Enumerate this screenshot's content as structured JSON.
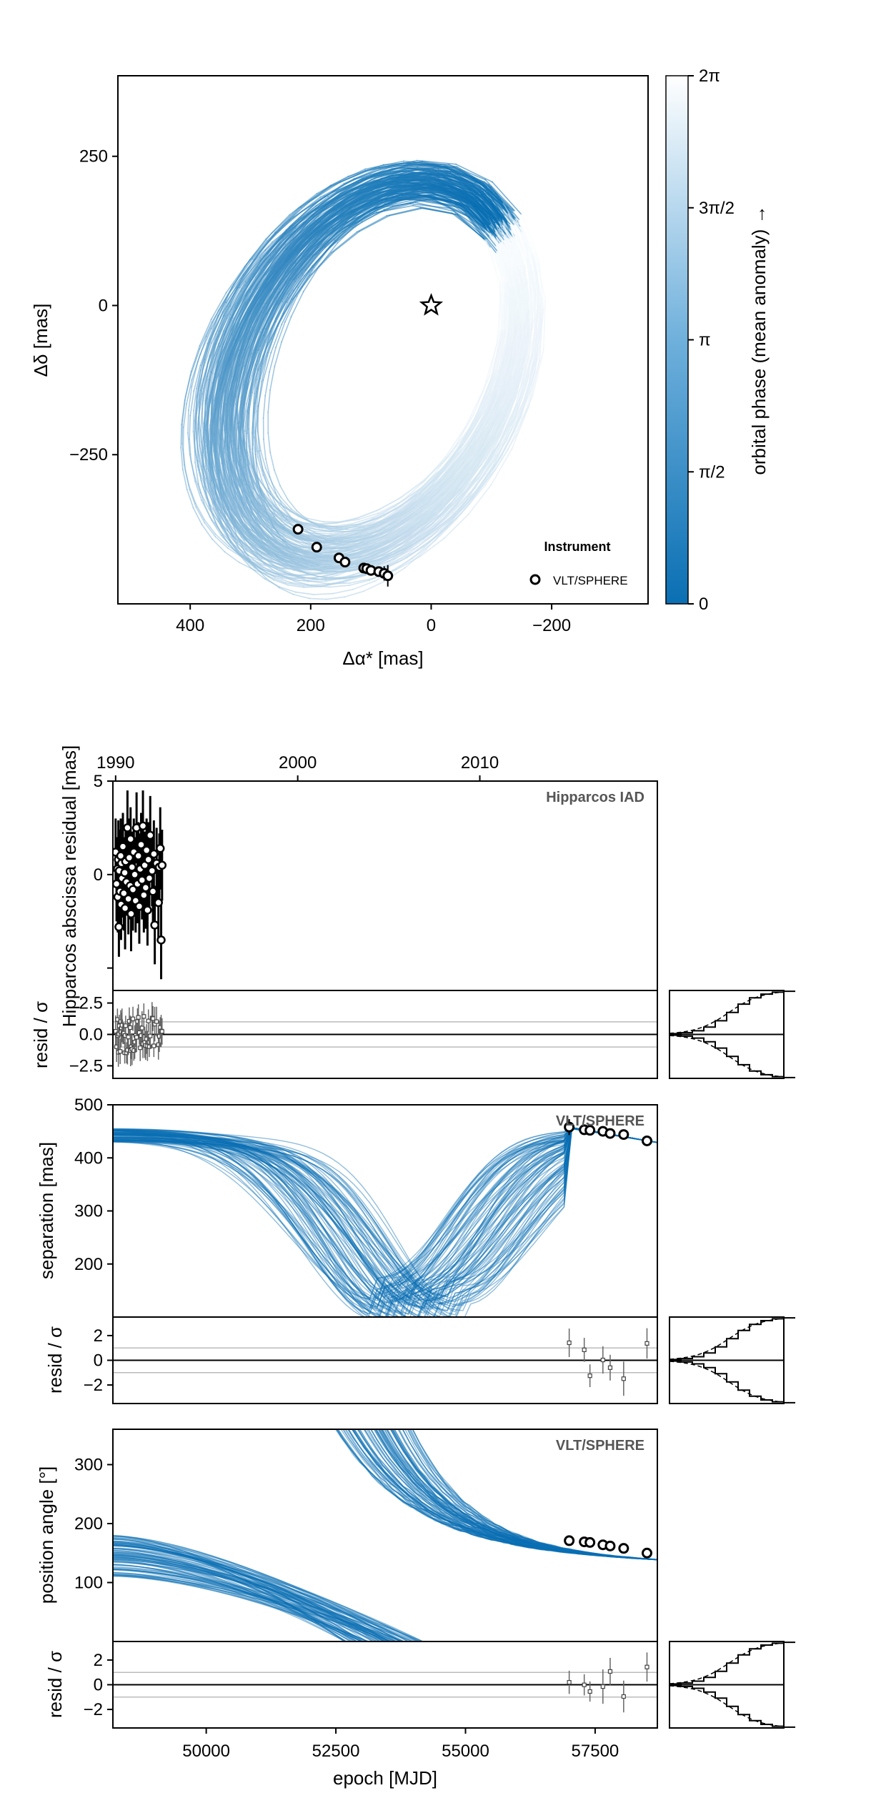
{
  "chart_data": [
    {
      "type": "line",
      "panel": "orbit-sky-plane",
      "xlabel": "Δα* [mas]",
      "ylabel": "Δδ [mas]",
      "xlim": [
        520,
        -360
      ],
      "ylim": [
        -500,
        385
      ],
      "x_axis_reversed": true,
      "xticks": [
        {
          "value": 400,
          "label": "400"
        },
        {
          "value": 200,
          "label": "200"
        },
        {
          "value": 0,
          "label": "0"
        },
        {
          "value": -200,
          "label": "−200"
        }
      ],
      "yticks": [
        {
          "value": 250,
          "label": "250"
        },
        {
          "value": 0,
          "label": "0"
        },
        {
          "value": -250,
          "label": "−250"
        }
      ],
      "grid": false,
      "star_marker": {
        "x": 0,
        "y": 0
      },
      "orbit_model": {
        "semimajor_mas": 340,
        "eccentricity": 0.45,
        "inclination_deg": 45,
        "n_samples": 150
      },
      "legend": {
        "title": "Instrument",
        "placement": "bottom-right",
        "entries": [
          "VLT/SPHERE"
        ]
      },
      "series": [
        {
          "name": "VLT/SPHERE",
          "x": [
            221,
            190,
            153,
            143,
            112,
            107,
            100,
            87,
            78,
            72
          ],
          "y": [
            -375,
            -405,
            -423,
            -430,
            -440,
            -441,
            -444,
            -446,
            -449,
            -453
          ],
          "yerr": [
            6,
            6,
            6,
            6,
            6,
            6,
            6,
            6,
            12,
            18
          ]
        }
      ],
      "colorbar": {
        "label": "orbital phase (mean anomaly) →",
        "ticks": [
          "0",
          "π/2",
          "π",
          "3π/2",
          "2π"
        ],
        "color_low": "#0a6fb3",
        "color_high": "#ffffff"
      }
    },
    {
      "type": "scatter",
      "panel": "hipparcos-iad",
      "title": "Hipparcos IAD",
      "xlabel": "",
      "ylabel": "Hipparcos abscissa residual [mas]",
      "top_axis_ticks": [
        {
          "value": 1990,
          "label": "1990"
        },
        {
          "value": 2000,
          "label": "2000"
        },
        {
          "value": 2010,
          "label": "2010"
        }
      ],
      "xlim_years": [
        1989.85,
        2019.75
      ],
      "ylim": [
        -6.2,
        5
      ],
      "yticks": [
        {
          "value": 5,
          "label": "5"
        },
        {
          "value": 0,
          "label": "0"
        }
      ],
      "series": [
        {
          "name": "Hipparcos IAD",
          "x": [
            1990.0,
            1990.05,
            1990.1,
            1990.12,
            1990.15,
            1990.18,
            1990.2,
            1990.25,
            1990.28,
            1990.3,
            1990.32,
            1990.35,
            1990.4,
            1990.45,
            1990.5,
            1990.52,
            1990.55,
            1990.6,
            1990.65,
            1990.7,
            1990.75,
            1990.8,
            1990.82,
            1990.85,
            1990.9,
            1990.95,
            1991.0,
            1991.05,
            1991.1,
            1991.15,
            1991.2,
            1991.25,
            1991.3,
            1991.35,
            1991.4,
            1991.45,
            1991.5,
            1991.55,
            1991.6,
            1991.65,
            1991.7,
            1991.75,
            1991.8,
            1991.85,
            1991.9,
            1992.0,
            1992.05,
            1992.1,
            1992.15,
            1992.25,
            1992.35,
            1992.4,
            1992.45,
            1992.5,
            1992.55
          ],
          "y": [
            1.2,
            -0.5,
            0.3,
            -1.2,
            0.8,
            -2.8,
            0.2,
            -0.9,
            1.0,
            -1.6,
            0.6,
            -0.2,
            1.5,
            -1.0,
            0.1,
            -1.8,
            0.7,
            -0.4,
            2.5,
            -1.3,
            0.9,
            -0.6,
            1.9,
            -2.1,
            0.4,
            -0.8,
            1.2,
            0.0,
            -1.4,
            2.5,
            -0.5,
            1.0,
            -1.7,
            0.3,
            1.6,
            -0.3,
            2.6,
            -1.1,
            0.5,
            -0.7,
            1.3,
            -1.9,
            0.8,
            -0.2,
            2.1,
            0.2,
            -0.9,
            1.1,
            -2.7,
            0.6,
            -1.5,
            0.4,
            1.4,
            -3.5,
            0.5
          ],
          "yerr": [
            1.8,
            2.0,
            1.7,
            1.9,
            2.1,
            1.6,
            2.2,
            1.8,
            2.0,
            1.9,
            1.7,
            2.1,
            1.8,
            2.0,
            1.9,
            2.2,
            1.7,
            1.8,
            2.0,
            1.9,
            2.1,
            1.8,
            1.7,
            2.0,
            1.9,
            2.2,
            1.8,
            2.0,
            1.7,
            1.9,
            2.1,
            1.8,
            2.0,
            1.9,
            1.7,
            2.1,
            1.9,
            2.0,
            1.8,
            2.2,
            1.7,
            1.9,
            2.0,
            1.8,
            2.1,
            1.9,
            2.0,
            1.8,
            2.1,
            1.9,
            2.0,
            1.8,
            2.2,
            2.1,
            1.9
          ]
        }
      ],
      "residuals": {
        "ylabel": "resid / σ",
        "ylim": [
          -3.5,
          3.5
        ],
        "yticks": [
          {
            "value": 2.5,
            "label": "2.5"
          },
          {
            "value": 0,
            "label": "0.0"
          },
          {
            "value": -2.5,
            "label": "−2.5"
          }
        ],
        "ref_lines": [
          1,
          -1
        ]
      }
    },
    {
      "type": "line",
      "panel": "separation",
      "title": "VLT/SPHERE",
      "xlabel": "",
      "ylabel": "separation [mas]",
      "xlim": [
        48200,
        58700
      ],
      "ylim": [
        100,
        500
      ],
      "yticks": [
        {
          "value": 500,
          "label": "500"
        },
        {
          "value": 400,
          "label": "400"
        },
        {
          "value": 300,
          "label": "300"
        },
        {
          "value": 200,
          "label": "200"
        }
      ],
      "series": [
        {
          "name": "VLT/SPHERE",
          "x": [
            57000,
            57290,
            57400,
            57650,
            57790,
            58050,
            58500
          ],
          "y": [
            458,
            453,
            452,
            450,
            446,
            444,
            432
          ],
          "yerr": [
            15,
            4,
            3,
            3,
            3,
            3,
            3
          ]
        }
      ],
      "residuals": {
        "ylabel": "resid / σ",
        "ylim": [
          -3.5,
          3.5
        ],
        "yticks": [
          {
            "value": 2,
            "label": "2"
          },
          {
            "value": 0,
            "label": "0"
          },
          {
            "value": -2,
            "label": "−2"
          }
        ],
        "ref_lines": [
          1,
          -1
        ]
      }
    },
    {
      "type": "line",
      "panel": "position-angle",
      "title": "VLT/SPHERE",
      "xlabel": "epoch [MJD]",
      "ylabel": "position angle [°]",
      "xlim": [
        48200,
        58700
      ],
      "ylim": [
        0,
        360
      ],
      "yticks": [
        {
          "value": 300,
          "label": "300"
        },
        {
          "value": 200,
          "label": "200"
        },
        {
          "value": 100,
          "label": "100"
        }
      ],
      "xticks": [
        {
          "value": 50000,
          "label": "50000"
        },
        {
          "value": 52500,
          "label": "52500"
        },
        {
          "value": 55000,
          "label": "55000"
        },
        {
          "value": 57500,
          "label": "57500"
        }
      ],
      "series": [
        {
          "name": "VLT/SPHERE",
          "x": [
            57000,
            57290,
            57400,
            57650,
            57790,
            58050,
            58500
          ],
          "y": [
            171,
            169,
            168,
            164,
            162,
            158,
            150
          ],
          "yerr": [
            3,
            2,
            2,
            2,
            2,
            2,
            2
          ]
        }
      ],
      "residuals": {
        "ylabel": "resid / σ",
        "ylim": [
          -3.5,
          3.5
        ],
        "yticks": [
          {
            "value": 2,
            "label": "2"
          },
          {
            "value": 0,
            "label": "0"
          },
          {
            "value": -2,
            "label": "−2"
          }
        ],
        "ref_lines": [
          1,
          -1
        ]
      }
    }
  ]
}
